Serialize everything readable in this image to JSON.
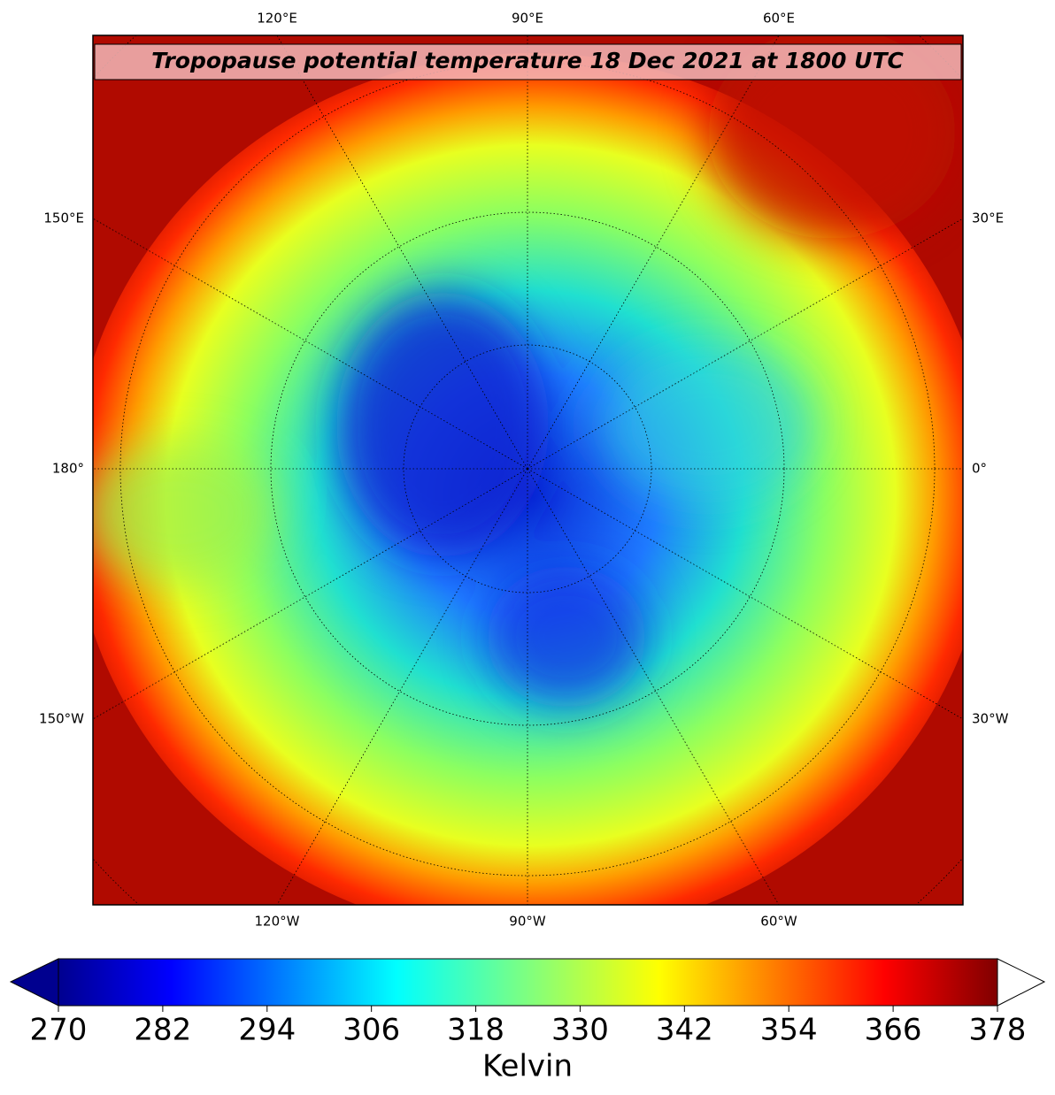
{
  "map": {
    "title": "Tropopause potential temperature 18 Dec 2021 at 1800 UTC",
    "labels": {
      "top": [
        "120°E",
        "90°E",
        "60°E"
      ],
      "bottom": [
        "120°W",
        "90°W",
        "60°W"
      ],
      "left": [
        "150°E",
        "180°",
        "150°W"
      ],
      "right": [
        "30°E",
        "0°",
        "30°W"
      ]
    }
  },
  "colorbar": {
    "lim": [
      270,
      378
    ],
    "ticks": [
      270,
      282,
      294,
      306,
      318,
      330,
      342,
      354,
      366,
      378
    ],
    "label": "Kelvin"
  }
}
